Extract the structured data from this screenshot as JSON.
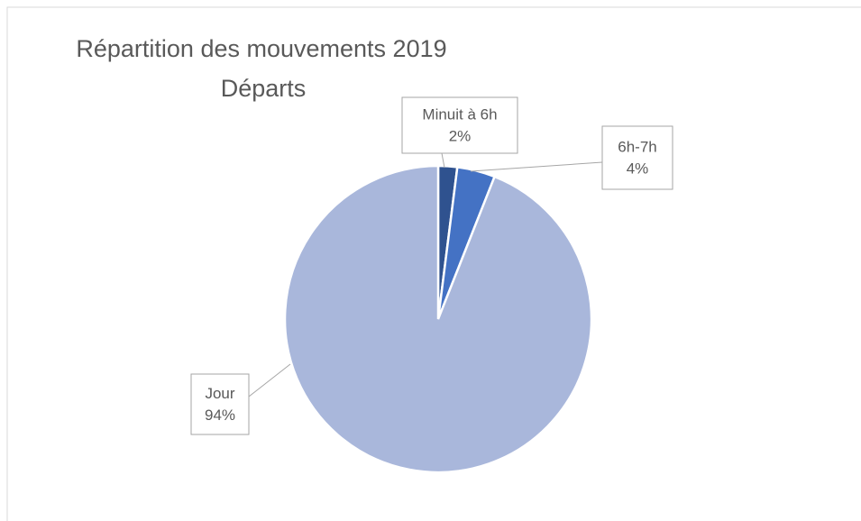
{
  "chart_data": {
    "type": "pie",
    "title": "Répartition des mouvements 2019",
    "subtitle": "Départs",
    "categories": [
      "Minuit à 6h",
      "6h-7h",
      "Jour"
    ],
    "values": [
      2,
      4,
      94
    ],
    "value_labels": [
      "2%",
      "4%",
      "94%"
    ],
    "colors": [
      "#2f528f",
      "#4472c4",
      "#a9b7db"
    ]
  }
}
